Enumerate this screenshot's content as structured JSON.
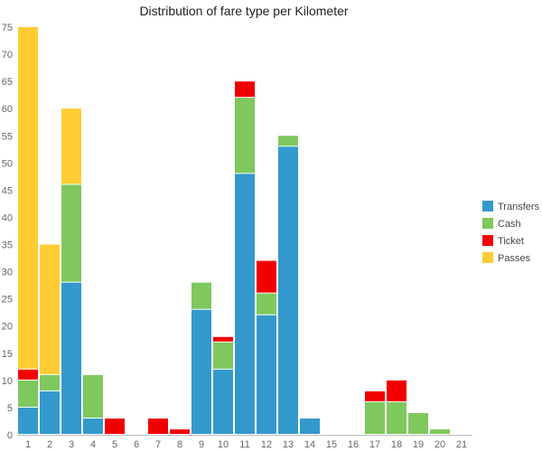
{
  "chart_data": {
    "type": "bar",
    "stacked": true,
    "title": "Distribution of fare type per Kilometer",
    "xlabel": "",
    "ylabel": "",
    "categories": [
      "1",
      "2",
      "3",
      "4",
      "5",
      "6",
      "7",
      "8",
      "9",
      "10",
      "11",
      "12",
      "13",
      "14",
      "15",
      "16",
      "17",
      "18",
      "19",
      "20",
      "21"
    ],
    "ylim": [
      0,
      75
    ],
    "yticks": [
      0,
      5,
      10,
      15,
      20,
      25,
      30,
      35,
      40,
      45,
      50,
      55,
      60,
      65,
      70,
      75
    ],
    "grid": false,
    "legend_position": "right",
    "series": [
      {
        "name": "Transfers",
        "color": "#3399cc",
        "values": [
          5,
          8,
          28,
          3,
          0,
          0,
          0,
          0,
          23,
          12,
          48,
          22,
          53,
          3,
          0,
          0,
          0,
          0,
          0,
          0,
          0
        ]
      },
      {
        "name": "Cash",
        "color": "#7ec85d",
        "values": [
          5,
          3,
          18,
          8,
          0,
          0,
          0,
          0,
          5,
          5,
          14,
          4,
          2,
          0,
          0,
          0,
          6,
          6,
          4,
          1,
          0
        ]
      },
      {
        "name": "Ticket",
        "color": "#f20000",
        "values": [
          2,
          0,
          0,
          0,
          3,
          0,
          3,
          1,
          0,
          1,
          3,
          6,
          0,
          0,
          0,
          0,
          2,
          4,
          0,
          0,
          0
        ]
      },
      {
        "name": "Passes",
        "color": "#ffcc33",
        "values": [
          63,
          24,
          14,
          0,
          0,
          0,
          0,
          0,
          0,
          0,
          0,
          0,
          0,
          0,
          0,
          0,
          0,
          0,
          0,
          0,
          0
        ]
      }
    ]
  }
}
